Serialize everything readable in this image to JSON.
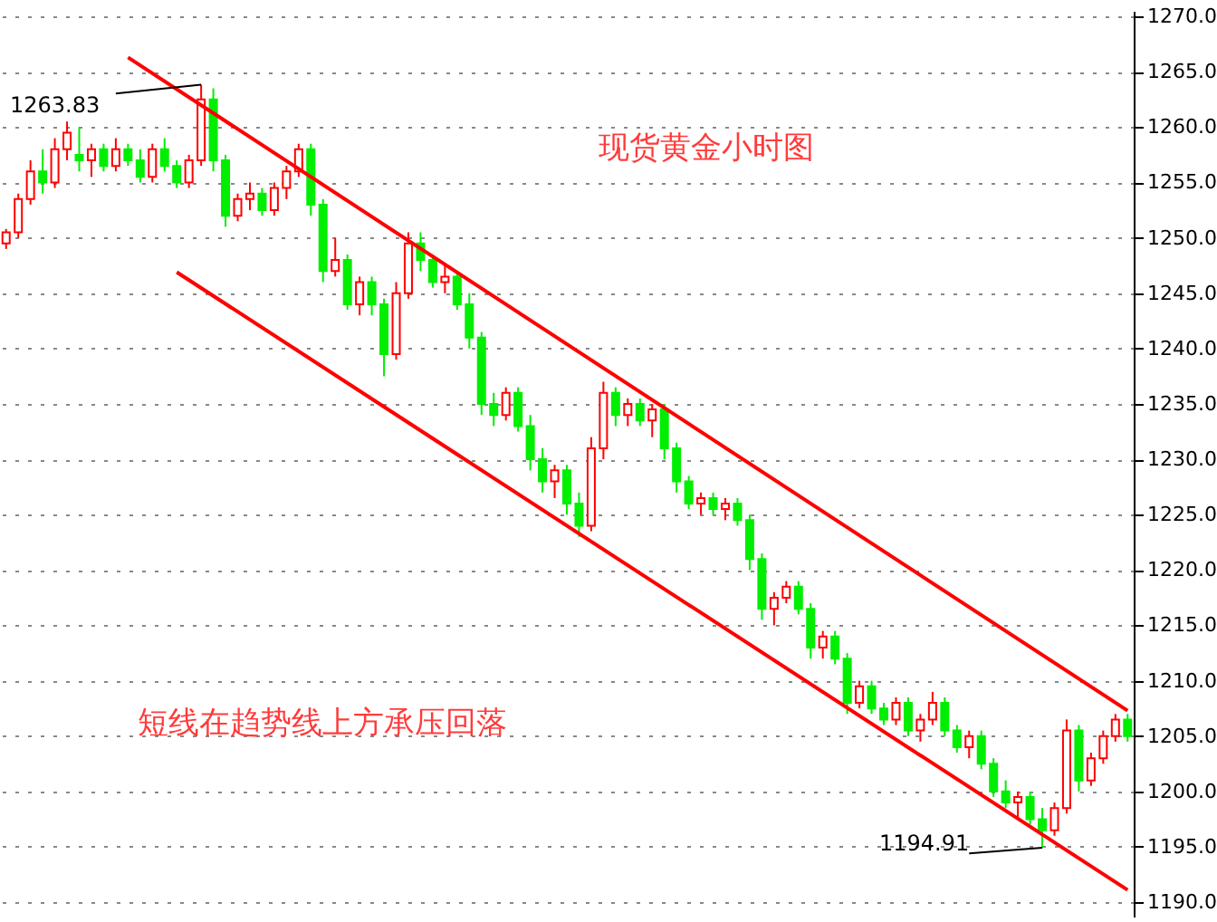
{
  "chart_data": {
    "type": "candlestick",
    "title": "现货黄金小时图",
    "annotations": [
      "短线在趋势线上方承压回落",
      "1263.83",
      "1194.91"
    ],
    "categories": [
      null,
      null,
      null,
      null,
      null,
      null,
      null,
      null,
      null,
      null,
      null,
      null,
      null,
      null,
      null,
      null,
      null,
      null,
      null,
      null,
      null,
      null,
      null,
      null,
      null,
      null,
      null,
      null,
      null,
      null,
      null,
      null,
      null,
      null,
      null,
      null,
      null,
      null,
      null,
      null,
      null,
      null,
      null,
      null,
      null,
      null,
      null,
      null,
      null,
      null,
      null,
      null,
      null,
      null,
      null,
      null,
      null,
      null,
      null,
      null,
      null,
      null,
      null,
      null,
      null,
      null,
      null,
      null,
      null,
      null,
      null,
      null,
      null,
      null,
      null,
      null,
      null,
      null,
      null,
      null,
      null,
      null,
      null,
      null,
      null,
      null,
      null,
      null,
      null,
      null,
      null,
      null,
      null
    ],
    "ohlc": [
      [
        1249.5,
        1250.8,
        1249,
        1250.5
      ],
      [
        1250.5,
        1254,
        1250,
        1253.5
      ],
      [
        1253.5,
        1257,
        1253,
        1256
      ],
      [
        1256,
        1258,
        1254,
        1255
      ],
      [
        1255,
        1259,
        1254.5,
        1258
      ],
      [
        1258,
        1260.5,
        1257,
        1259.5
      ],
      [
        1257.5,
        1260,
        1256,
        1257
      ],
      [
        1257,
        1258.5,
        1255.5,
        1258
      ],
      [
        1258,
        1258.5,
        1256,
        1256.5
      ],
      [
        1256.5,
        1259,
        1256,
        1258
      ],
      [
        1258,
        1258.5,
        1256.5,
        1257
      ],
      [
        1257,
        1258,
        1255,
        1255.5
      ],
      [
        1255.5,
        1258.5,
        1255,
        1258
      ],
      [
        1258,
        1259,
        1256,
        1256.5
      ],
      [
        1256.5,
        1257,
        1254.5,
        1255
      ],
      [
        1255,
        1257.5,
        1254.5,
        1257
      ],
      [
        1257,
        1263.83,
        1256.5,
        1262.5
      ],
      [
        1262.5,
        1263.5,
        1256,
        1257
      ],
      [
        1257,
        1257.5,
        1251,
        1252
      ],
      [
        1252,
        1254,
        1251.5,
        1253.5
      ],
      [
        1253.5,
        1255,
        1252.5,
        1254
      ],
      [
        1254,
        1254.5,
        1252,
        1252.5
      ],
      [
        1252.5,
        1255,
        1252,
        1254.5
      ],
      [
        1254.5,
        1256.5,
        1253.5,
        1256
      ],
      [
        1256,
        1258.5,
        1255.5,
        1258
      ],
      [
        1258,
        1258.5,
        1252,
        1253
      ],
      [
        1253,
        1253.5,
        1246,
        1247
      ],
      [
        1247,
        1250,
        1246.5,
        1248
      ],
      [
        1248,
        1248.5,
        1243.5,
        1244
      ],
      [
        1244,
        1246.5,
        1243,
        1246
      ],
      [
        1246,
        1246.5,
        1243,
        1244
      ],
      [
        1244,
        1244.5,
        1237.5,
        1239.5
      ],
      [
        1239.5,
        1246,
        1239,
        1245
      ],
      [
        1245,
        1250.5,
        1244.5,
        1249.5
      ],
      [
        1249.5,
        1250.5,
        1247,
        1248
      ],
      [
        1248,
        1248.5,
        1245.5,
        1246
      ],
      [
        1246,
        1247.5,
        1245,
        1246.5
      ],
      [
        1246.5,
        1247,
        1243.5,
        1244
      ],
      [
        1244,
        1245,
        1240,
        1241
      ],
      [
        1241,
        1241.5,
        1234,
        1235
      ],
      [
        1235,
        1236,
        1233,
        1234
      ],
      [
        1234,
        1236.5,
        1233.5,
        1236
      ],
      [
        1236,
        1236.5,
        1232.5,
        1233
      ],
      [
        1233,
        1234,
        1229,
        1230
      ],
      [
        1230,
        1231,
        1227,
        1228
      ],
      [
        1228,
        1229.5,
        1226.5,
        1229
      ],
      [
        1229,
        1229.5,
        1225,
        1226
      ],
      [
        1226,
        1227,
        1223,
        1224
      ],
      [
        1224,
        1232,
        1223.5,
        1231
      ],
      [
        1231,
        1237,
        1230,
        1236
      ],
      [
        1236,
        1236.5,
        1233,
        1234
      ],
      [
        1234,
        1235.5,
        1233,
        1235
      ],
      [
        1235,
        1235.5,
        1233,
        1233.5
      ],
      [
        1233.5,
        1235,
        1232,
        1234.5
      ],
      [
        1234.5,
        1235,
        1230,
        1231
      ],
      [
        1231,
        1231.5,
        1227,
        1228
      ],
      [
        1228,
        1228.5,
        1225.5,
        1226
      ],
      [
        1226,
        1227,
        1225,
        1226.5
      ],
      [
        1226.5,
        1227,
        1225,
        1225.5
      ],
      [
        1225.5,
        1226.5,
        1224.5,
        1226
      ],
      [
        1226,
        1226.5,
        1224,
        1224.5
      ],
      [
        1224.5,
        1225,
        1220,
        1221
      ],
      [
        1221,
        1221.5,
        1215.5,
        1216.5
      ],
      [
        1216.5,
        1218,
        1215,
        1217.5
      ],
      [
        1217.5,
        1219,
        1217,
        1218.5
      ],
      [
        1218.5,
        1219,
        1216,
        1216.5
      ],
      [
        1216.5,
        1217,
        1212,
        1213
      ],
      [
        1213,
        1214.5,
        1212,
        1214
      ],
      [
        1214,
        1214.5,
        1211.5,
        1212
      ],
      [
        1212,
        1212.5,
        1207,
        1208
      ],
      [
        1208,
        1210,
        1207.5,
        1209.5
      ],
      [
        1209.5,
        1210,
        1207,
        1207.5
      ],
      [
        1207.5,
        1208,
        1206,
        1206.5
      ],
      [
        1206.5,
        1208.5,
        1206,
        1208
      ],
      [
        1208,
        1208.5,
        1205,
        1205.5
      ],
      [
        1205.5,
        1207,
        1204.5,
        1206.5
      ],
      [
        1206.5,
        1209,
        1206,
        1208
      ],
      [
        1208,
        1208.5,
        1205,
        1205.5
      ],
      [
        1205.5,
        1206,
        1203.5,
        1204
      ],
      [
        1204,
        1205.5,
        1203,
        1205
      ],
      [
        1205,
        1205.5,
        1202,
        1202.5
      ],
      [
        1202.5,
        1203,
        1199.5,
        1200
      ],
      [
        1200,
        1201,
        1198.5,
        1199
      ],
      [
        1199,
        1200,
        1197.5,
        1199.5
      ],
      [
        1199.5,
        1200,
        1197,
        1197.5
      ],
      [
        1197.5,
        1198.5,
        1194.91,
        1196.5
      ],
      [
        1196.5,
        1199,
        1196,
        1198.5
      ],
      [
        1198.5,
        1206.5,
        1198,
        1205.5
      ],
      [
        1205.5,
        1206,
        1200,
        1201
      ],
      [
        1201,
        1203.5,
        1200.5,
        1203
      ],
      [
        1203,
        1205.5,
        1202.5,
        1205
      ],
      [
        1205,
        1207,
        1204.5,
        1206.5
      ],
      [
        1206.5,
        1207,
        1204.5,
        1205
      ]
    ],
    "colors": [
      "#ff0000",
      "#ff0000",
      "#ff0000",
      "#00ee00",
      "#ff0000",
      "#ff0000",
      "#00ee00",
      "#ff0000",
      "#00ee00",
      "#ff0000",
      "#00ee00",
      "#00ee00",
      "#ff0000",
      "#00ee00",
      "#00ee00",
      "#ff0000",
      "#ff0000",
      "#00ee00",
      "#00ee00",
      "#ff0000",
      "#ff0000",
      "#00ee00",
      "#ff0000",
      "#ff0000",
      "#ff0000",
      "#00ee00",
      "#00ee00",
      "#ff0000",
      "#00ee00",
      "#ff0000",
      "#00ee00",
      "#00ee00",
      "#ff0000",
      "#ff0000",
      "#00ee00",
      "#00ee00",
      "#ff0000",
      "#00ee00",
      "#00ee00",
      "#00ee00",
      "#00ee00",
      "#ff0000",
      "#00ee00",
      "#00ee00",
      "#00ee00",
      "#ff0000",
      "#00ee00",
      "#00ee00",
      "#ff0000",
      "#ff0000",
      "#00ee00",
      "#ff0000",
      "#00ee00",
      "#ff0000",
      "#00ee00",
      "#00ee00",
      "#00ee00",
      "#ff0000",
      "#00ee00",
      "#ff0000",
      "#00ee00",
      "#00ee00",
      "#00ee00",
      "#ff0000",
      "#ff0000",
      "#00ee00",
      "#00ee00",
      "#ff0000",
      "#00ee00",
      "#00ee00",
      "#ff0000",
      "#00ee00",
      "#00ee00",
      "#ff0000",
      "#00ee00",
      "#ff0000",
      "#ff0000",
      "#00ee00",
      "#00ee00",
      "#ff0000",
      "#00ee00",
      "#00ee00",
      "#00ee00",
      "#ff0000",
      "#00ee00",
      "#00ee00",
      "#ff0000",
      "#ff0000",
      "#00ee00",
      "#ff0000",
      "#ff0000",
      "#ff0000",
      "#00ee00"
    ],
    "series": [
      {
        "type": "line",
        "color": "#ff0000",
        "values": [
          null,
          null,
          null,
          null,
          null,
          null,
          null,
          null,
          null,
          null,
          1266.3,
          null,
          null,
          null,
          null,
          null,
          null,
          null,
          null,
          null,
          null,
          null,
          null,
          null,
          null,
          null,
          null,
          null,
          null,
          null,
          null,
          null,
          null,
          null,
          null,
          null,
          null,
          null,
          null,
          null,
          null,
          null,
          null,
          null,
          null,
          null,
          null,
          null,
          null,
          null,
          null,
          null,
          null,
          null,
          null,
          null,
          null,
          null,
          null,
          null,
          null,
          null,
          null,
          null,
          null,
          null,
          null,
          null,
          null,
          null,
          null,
          null,
          null,
          null,
          null,
          null,
          null,
          null,
          null,
          null,
          null,
          null,
          null,
          null,
          null,
          null,
          null,
          null,
          null,
          null,
          null,
          null,
          1207.3
        ]
      },
      {
        "type": "line",
        "color": "#ff0000",
        "values": [
          null,
          null,
          null,
          null,
          null,
          null,
          null,
          null,
          null,
          null,
          null,
          null,
          null,
          null,
          1246.9,
          null,
          null,
          null,
          null,
          null,
          null,
          null,
          null,
          null,
          null,
          null,
          null,
          null,
          null,
          null,
          null,
          null,
          null,
          null,
          null,
          null,
          null,
          null,
          null,
          null,
          null,
          null,
          null,
          null,
          null,
          null,
          null,
          null,
          null,
          null,
          null,
          null,
          null,
          null,
          null,
          null,
          null,
          null,
          null,
          null,
          null,
          null,
          null,
          null,
          null,
          null,
          null,
          null,
          null,
          null,
          null,
          null,
          null,
          null,
          null,
          null,
          null,
          null,
          null,
          null,
          null,
          null,
          null,
          null,
          null,
          null,
          null,
          null,
          null,
          null,
          null,
          null,
          1191.1
        ]
      }
    ],
    "ylim": [
      1188.7,
      1270.5
    ],
    "yticks": [
      {
        "value": 1190,
        "label": "1190.0"
      },
      {
        "value": 1195,
        "label": "1195.0"
      },
      {
        "value": 1200,
        "label": "1200.0"
      },
      {
        "value": 1205,
        "label": "1205.0"
      },
      {
        "value": 1210,
        "label": "1210.0"
      },
      {
        "value": 1215,
        "label": "1215.0"
      },
      {
        "value": 1220,
        "label": "1220.0"
      },
      {
        "value": 1225,
        "label": "1225.0"
      },
      {
        "value": 1230,
        "label": "1230.0"
      },
      {
        "value": 1235,
        "label": "1235.0"
      },
      {
        "value": 1240,
        "label": "1240.0"
      },
      {
        "value": 1245,
        "label": "1245.0"
      },
      {
        "value": 1250,
        "label": "1250.0"
      },
      {
        "value": 1255,
        "label": "1255.0"
      },
      {
        "value": 1260,
        "label": "1260.0"
      },
      {
        "value": 1265,
        "label": "1265.0"
      },
      {
        "value": 1270,
        "label": "1270.0"
      }
    ],
    "grid": "y",
    "tick_labels": "y"
  }
}
